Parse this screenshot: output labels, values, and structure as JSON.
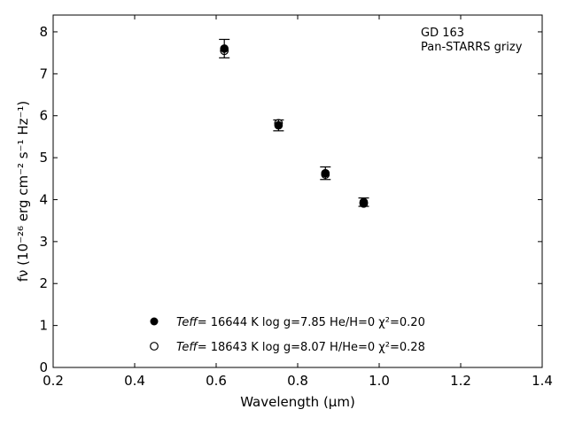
{
  "chart_data": {
    "type": "scatter",
    "title": "",
    "xlabel": "Wavelength (μm)",
    "ylabel": "fν (10⁻²⁶ erg cm⁻² s⁻¹ Hz⁻¹)",
    "xlim": [
      0.2,
      1.4
    ],
    "ylim": [
      0,
      8.4
    ],
    "xticks": [
      0.2,
      0.4,
      0.6,
      0.8,
      1.0,
      1.2,
      1.4
    ],
    "xtick_labels": [
      "0.2",
      "0.4",
      "0.6",
      "0.8",
      "1.0",
      "1.2",
      "1.4"
    ],
    "yticks": [
      0,
      1,
      2,
      3,
      4,
      5,
      6,
      7,
      8
    ],
    "ytick_labels": [
      "0",
      "1",
      "2",
      "3",
      "4",
      "5",
      "6",
      "7",
      "8"
    ],
    "grid": false,
    "legend_position": "bottom-center",
    "annotation": {
      "line1": "GD 163",
      "line2": "Pan-STARRS grizy"
    },
    "series": [
      {
        "marker": "filled-circle",
        "x": [
          0.62,
          0.753,
          0.868,
          0.962
        ],
        "y": [
          7.6,
          5.77,
          4.63,
          3.94
        ],
        "yerr": [
          0.22,
          0.13,
          0.15,
          0.1
        ],
        "legend": {
          "teff_label": "Teff",
          "line_rest": "= 16644 K  log g=7.85  He/H=0  χ²=0.20"
        }
      },
      {
        "marker": "open-circle",
        "x": [
          0.62,
          0.753,
          0.868,
          0.962
        ],
        "y": [
          7.55,
          5.82,
          4.6,
          3.91
        ],
        "legend": {
          "teff_label": "Teff",
          "line_rest": "= 18643 K  log g=8.07  H/He=0  χ²=0.28"
        }
      }
    ]
  }
}
